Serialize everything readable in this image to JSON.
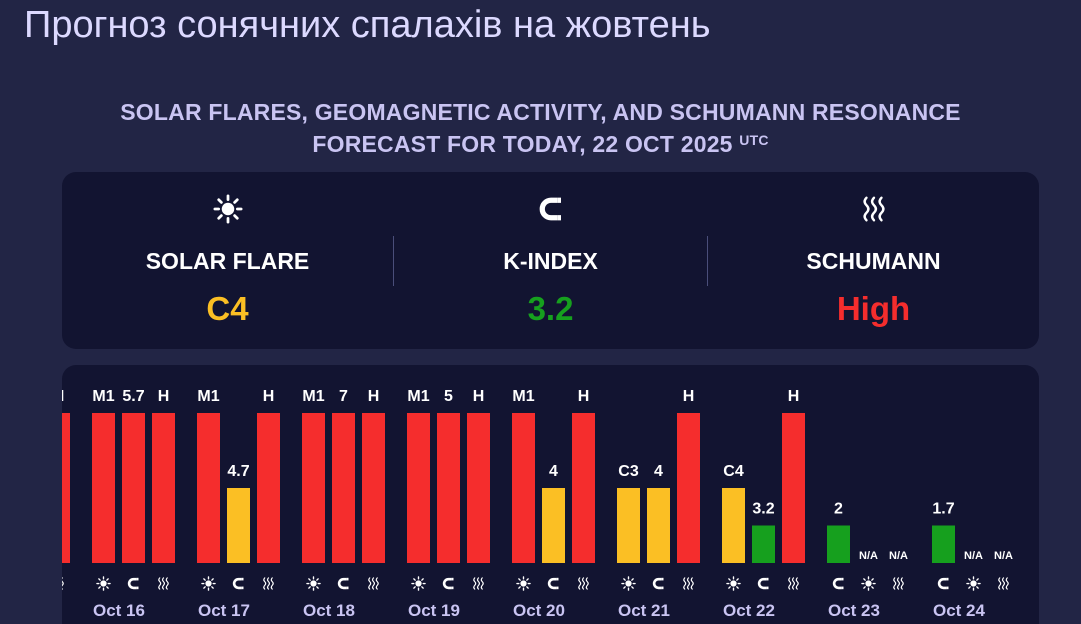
{
  "page_title": "Прогноз сонячних спалахів на жовтень",
  "subtitle": {
    "line1": "SOLAR FLARES, GEOMAGNETIC ACTIVITY, AND SCHUMANN RESONANCE",
    "line2": "FORECAST FOR TODAY, 22 OCT 2025",
    "suffix": "UTC"
  },
  "summary": {
    "solar_flare": {
      "label": "SOLAR FLARE",
      "value": "C4",
      "color": "#fbbf24",
      "icon": "sun-icon"
    },
    "k_index": {
      "label": "K-INDEX",
      "value": "3.2",
      "color": "#16a01e",
      "icon": "magnet-icon"
    },
    "schumann": {
      "label": "SCHUMANN",
      "value": "High",
      "color": "#f52d2d",
      "icon": "waves-icon"
    }
  },
  "colors": {
    "red": "#f52d2d",
    "yellow": "#fbbf24",
    "green": "#16a01e",
    "icon": "#ffffff"
  },
  "chart_data": {
    "type": "bar",
    "series": [
      {
        "name": "Solar flare",
        "icon": "sun-icon"
      },
      {
        "name": "K-index",
        "icon": "magnet-icon"
      },
      {
        "name": "Schumann",
        "icon": "waves-icon"
      }
    ],
    "partial_day": {
      "bars": [
        {
          "label": "H",
          "level": 1.0,
          "color": "red"
        }
      ]
    },
    "days": [
      {
        "date": "Oct 16",
        "bars": [
          {
            "label": "M1",
            "level": 1.0,
            "color": "red",
            "icon": "sun-icon"
          },
          {
            "label": "5.7",
            "level": 1.0,
            "color": "red",
            "icon": "magnet-icon"
          },
          {
            "label": "H",
            "level": 1.0,
            "color": "red",
            "icon": "waves-icon"
          }
        ]
      },
      {
        "date": "Oct 17",
        "bars": [
          {
            "label": "M1",
            "level": 1.0,
            "color": "red",
            "icon": "sun-icon"
          },
          {
            "label": "4.7",
            "level": 0.5,
            "color": "yellow",
            "icon": "magnet-icon"
          },
          {
            "label": "H",
            "level": 1.0,
            "color": "red",
            "icon": "waves-icon"
          }
        ]
      },
      {
        "date": "Oct 18",
        "bars": [
          {
            "label": "M1",
            "level": 1.0,
            "color": "red",
            "icon": "sun-icon"
          },
          {
            "label": "7",
            "level": 1.0,
            "color": "red",
            "icon": "magnet-icon"
          },
          {
            "label": "H",
            "level": 1.0,
            "color": "red",
            "icon": "waves-icon"
          }
        ]
      },
      {
        "date": "Oct 19",
        "bars": [
          {
            "label": "M1",
            "level": 1.0,
            "color": "red",
            "icon": "sun-icon"
          },
          {
            "label": "5",
            "level": 1.0,
            "color": "red",
            "icon": "magnet-icon"
          },
          {
            "label": "H",
            "level": 1.0,
            "color": "red",
            "icon": "waves-icon"
          }
        ]
      },
      {
        "date": "Oct 20",
        "bars": [
          {
            "label": "M1",
            "level": 1.0,
            "color": "red",
            "icon": "sun-icon"
          },
          {
            "label": "4",
            "level": 0.5,
            "color": "yellow",
            "icon": "magnet-icon"
          },
          {
            "label": "H",
            "level": 1.0,
            "color": "red",
            "icon": "waves-icon"
          }
        ]
      },
      {
        "date": "Oct 21",
        "bars": [
          {
            "label": "C3",
            "level": 0.5,
            "color": "yellow",
            "icon": "sun-icon"
          },
          {
            "label": "4",
            "level": 0.5,
            "color": "yellow",
            "icon": "magnet-icon"
          },
          {
            "label": "H",
            "level": 1.0,
            "color": "red",
            "icon": "waves-icon"
          }
        ]
      },
      {
        "date": "Oct 22",
        "bars": [
          {
            "label": "C4",
            "level": 0.5,
            "color": "yellow",
            "icon": "sun-icon"
          },
          {
            "label": "3.2",
            "level": 0.25,
            "color": "green",
            "icon": "magnet-icon"
          },
          {
            "label": "H",
            "level": 1.0,
            "color": "red",
            "icon": "waves-icon"
          }
        ]
      },
      {
        "date": "Oct 23",
        "bars": [
          {
            "label": "2",
            "level": 0.25,
            "color": "green",
            "icon": "magnet-icon"
          },
          {
            "label": "N/A",
            "level": 0,
            "color": "none",
            "icon": "sun-icon"
          },
          {
            "label": "N/A",
            "level": 0,
            "color": "none",
            "icon": "waves-icon"
          }
        ]
      },
      {
        "date": "Oct 24",
        "bars": [
          {
            "label": "1.7",
            "level": 0.25,
            "color": "green",
            "icon": "magnet-icon"
          },
          {
            "label": "N/A",
            "level": 0,
            "color": "none",
            "icon": "sun-icon"
          },
          {
            "label": "N/A",
            "level": 0,
            "color": "none",
            "icon": "waves-icon"
          }
        ]
      }
    ]
  }
}
